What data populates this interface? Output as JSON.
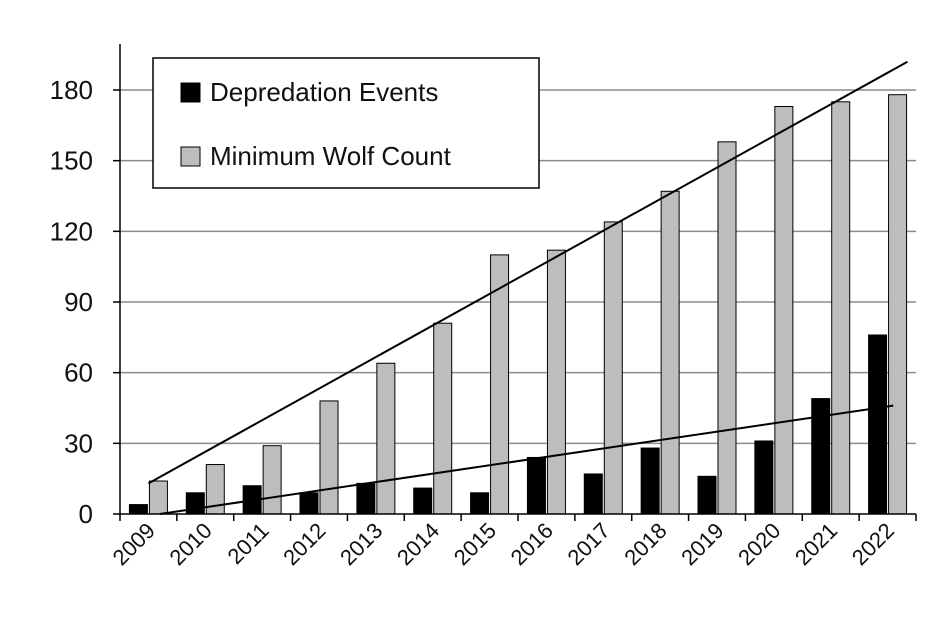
{
  "chart_data": {
    "type": "bar",
    "categories": [
      "2009",
      "2010",
      "2011",
      "2012",
      "2013",
      "2014",
      "2015",
      "2016",
      "2017",
      "2018",
      "2019",
      "2020",
      "2021",
      "2022"
    ],
    "series": [
      {
        "name": "Depredation Events",
        "color": "#000000",
        "values": [
          4,
          9,
          12,
          9,
          13,
          11,
          9,
          24,
          17,
          28,
          16,
          31,
          49,
          76
        ]
      },
      {
        "name": "Minimum Wolf Count",
        "color": "#bdbdbd",
        "values": [
          14,
          21,
          29,
          48,
          64,
          81,
          110,
          112,
          124,
          137,
          158,
          173,
          175,
          178
        ]
      }
    ],
    "trendlines": [
      {
        "series": "Minimum Wolf Count",
        "start": [
          0,
          13
        ],
        "end": [
          13.35,
          192
        ]
      },
      {
        "series": "Depredation Events",
        "start": [
          0.2,
          0
        ],
        "end": [
          13.1,
          46
        ]
      }
    ],
    "y_ticks": [
      "0",
      "30",
      "60",
      "90",
      "120",
      "150",
      "180"
    ],
    "ylim": [
      0,
      192
    ],
    "grid": true,
    "legend_position": "top-left",
    "title": "",
    "xlabel": "",
    "ylabel": ""
  }
}
